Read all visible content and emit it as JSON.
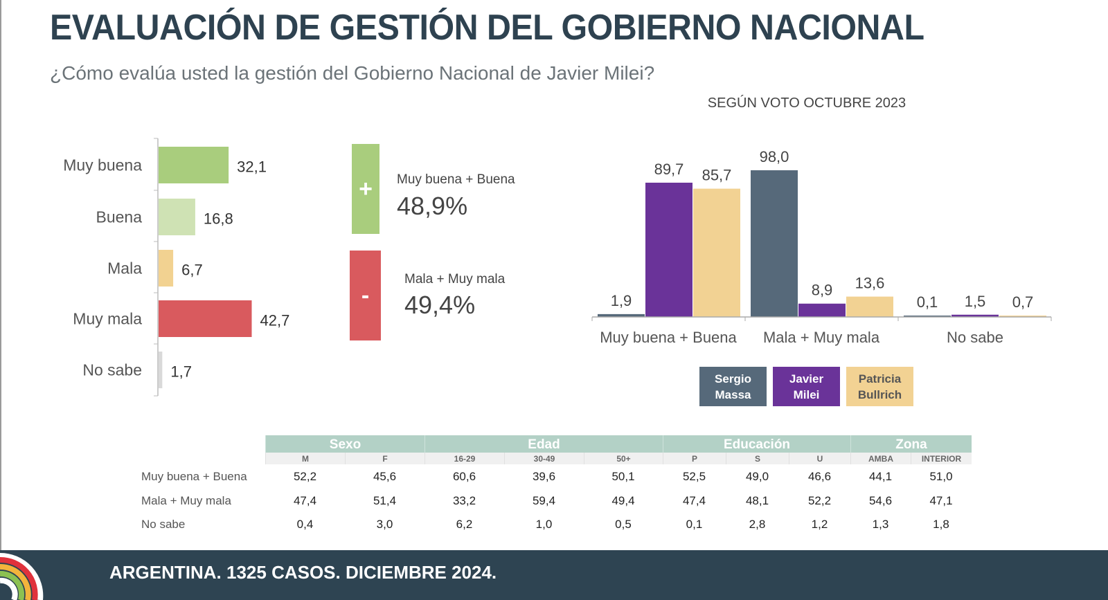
{
  "header": {
    "title": "EVALUACIÓN DE GESTIÓN DEL GOBIERNO NACIONAL",
    "subtitle": "¿Cómo evalúa usted la gestión del Gobierno Nacional de Javier Milei?"
  },
  "summary": {
    "positive": {
      "sign": "+",
      "label": "Muy buena + Buena",
      "value": "48,9%",
      "color": "#a9cd7d"
    },
    "negative": {
      "sign": "-",
      "label": "Mala + Muy mala",
      "value": "49,4%",
      "color": "#d95a5e"
    }
  },
  "chart_data": [
    {
      "type": "bar",
      "orientation": "horizontal",
      "title": "",
      "categories": [
        "Muy buena",
        "Buena",
        "Mala",
        "Muy mala",
        "No sabe"
      ],
      "values": [
        32.1,
        16.8,
        6.7,
        42.7,
        1.7
      ],
      "labels": [
        "32,1",
        "16,8",
        "6,7",
        "42,7",
        "1,7"
      ],
      "colors": [
        "#a9cd7d",
        "#cfe2b4",
        "#f2d291",
        "#d95a5e",
        "#d9d9d9"
      ],
      "xlim": [
        0,
        100
      ]
    },
    {
      "type": "bar",
      "title": "SEGÚN VOTO OCTUBRE 2023",
      "categories": [
        "Muy buena + Buena",
        "Mala + Muy mala",
        "No sabe"
      ],
      "series": [
        {
          "name": "Sergio\nMassa",
          "color": "#56697a",
          "values": [
            1.9,
            98.0,
            0.1
          ],
          "labels": [
            "1,9",
            "98,0",
            "0,1"
          ]
        },
        {
          "name": "Javier\nMilei",
          "color": "#6a3399",
          "values": [
            89.7,
            8.9,
            1.5
          ],
          "labels": [
            "89,7",
            "8,9",
            "1,5"
          ]
        },
        {
          "name": "Patricia\nBullrich",
          "color": "#f2d293",
          "values": [
            85.7,
            13.6,
            0.7
          ],
          "labels": [
            "85,7",
            "13,6",
            "0,7"
          ]
        }
      ],
      "legend": "bottom",
      "ylim": [
        0,
        100
      ]
    },
    {
      "type": "table",
      "groups": [
        {
          "label": "Sexo",
          "columns": [
            "M",
            "F"
          ]
        },
        {
          "label": "Edad",
          "columns": [
            "16-29",
            "30-49",
            "50+"
          ]
        },
        {
          "label": "Educación",
          "columns": [
            "P",
            "S",
            "U"
          ]
        },
        {
          "label": "Zona",
          "columns": [
            "AMBA",
            "INTERIOR"
          ]
        }
      ],
      "rows": [
        {
          "label": "Muy buena + Buena",
          "values": [
            "52,2",
            "45,6",
            "60,6",
            "39,6",
            "50,1",
            "52,5",
            "49,0",
            "46,6",
            "44,1",
            "51,0"
          ]
        },
        {
          "label": "Mala + Muy mala",
          "values": [
            "47,4",
            "51,4",
            "33,2",
            "59,4",
            "49,4",
            "47,4",
            "48,1",
            "52,2",
            "54,6",
            "47,1"
          ]
        },
        {
          "label": "No sabe",
          "values": [
            "0,4",
            "3,0",
            "6,2",
            "1,0",
            "0,5",
            "0,1",
            "2,8",
            "1,2",
            "1,3",
            "1,8"
          ]
        }
      ]
    }
  ],
  "footer": {
    "text": "ARGENTINA. 1325 CASOS. DICIEMBRE 2024."
  }
}
